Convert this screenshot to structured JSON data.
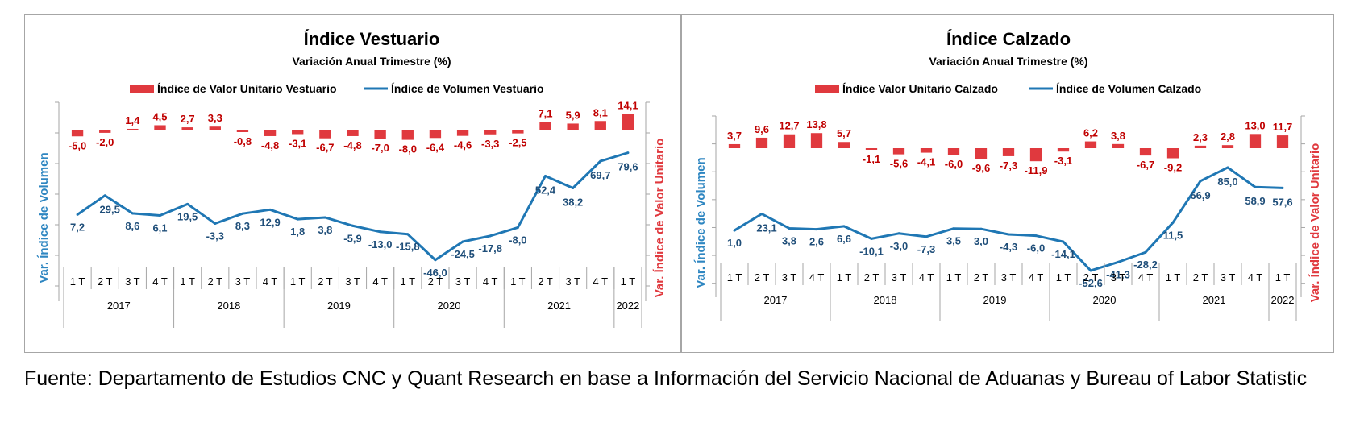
{
  "colors": {
    "bar": "#e0393e",
    "line": "#1f77b4",
    "label_red": "#c00000",
    "label_blue": "#1f4e79",
    "axis_blue": "#2e86c1",
    "axis_red": "#e0393e",
    "grid": "#a6a6a6"
  },
  "source_text": "Fuente: Departamento de Estudios CNC y Quant Research en base a Información del Servicio Nacional de Aduanas y Bureau of Labor Statistic",
  "chart_data": [
    {
      "type": "bar+line",
      "title": "Índice Vestuario",
      "subtitle": "Variación Anual Trimestre  (%)",
      "legend": {
        "bar": "Índice de Valor Unitario Vestuario",
        "line": "Índice de Volumen Vestuario",
        "position": "top-center"
      },
      "ylabel_left": "Var. Índice de Volumen",
      "ylabel_right": "Var. Índice de Valor Unitario",
      "quarters": [
        "1 T",
        "2 T",
        "3 T",
        "4 T",
        "1 T",
        "2 T",
        "3 T",
        "4 T",
        "1 T",
        "2 T",
        "3 T",
        "4 T",
        "1 T",
        "2 T",
        "3 T",
        "4 T",
        "1 T",
        "2 T",
        "3 T",
        "4 T",
        "1 T"
      ],
      "years": [
        {
          "label": "2017",
          "count": 4
        },
        {
          "label": "2018",
          "count": 4
        },
        {
          "label": "2019",
          "count": 4
        },
        {
          "label": "2020",
          "count": 4
        },
        {
          "label": "2021",
          "count": 4
        },
        {
          "label": "2022",
          "count": 1
        }
      ],
      "bars": [
        -5.0,
        -2.0,
        1.4,
        4.5,
        2.7,
        3.3,
        -0.8,
        -4.8,
        -3.1,
        -6.7,
        -4.8,
        -7.0,
        -8.0,
        -6.4,
        -4.6,
        -3.3,
        -2.5,
        7.1,
        5.9,
        8.1,
        14.1
      ],
      "bar_labels": [
        "-5,0",
        "-2,0",
        "1,4",
        "4,5",
        "2,7",
        "3,3",
        "-0,8",
        "-4,8",
        "-3,1",
        "-6,7",
        "-4,8",
        "-7,0",
        "-8,0",
        "-6,4",
        "-4,6",
        "-3,3",
        "-2,5",
        "7,1",
        "5,9",
        "8,1",
        "14,1"
      ],
      "line": [
        7.2,
        29.5,
        8.6,
        6.1,
        19.5,
        -3.3,
        8.3,
        12.9,
        1.8,
        3.8,
        -5.9,
        -13.0,
        -15.8,
        -46.0,
        -24.5,
        -17.8,
        -8.0,
        52.4,
        38.2,
        69.7,
        79.6
      ],
      "line_labels": [
        "7,2",
        "29,5",
        "8,6",
        "6,1",
        "19,5",
        "-3,3",
        "8,3",
        "12,9",
        "1,8",
        "3,8",
        "-5,9",
        "-13,0",
        "-15,8",
        "-46,0",
        "-24,5",
        "-17,8",
        "-8,0",
        "52,4",
        "38,2",
        "69,7",
        "79,6"
      ],
      "ylim_left": [
        -100,
        125
      ],
      "ylim_right": [
        -100,
        20
      ]
    },
    {
      "type": "bar+line",
      "title": "Índice Calzado",
      "subtitle": "Variación Anual Trimestre  (%)",
      "legend": {
        "bar": "Índice Valor Unitario Calzado",
        "line": "Índice de Volumen Calzado",
        "position": "top-center"
      },
      "ylabel_left": "Var. Índice de Volumen",
      "ylabel_right": "Var. Índice de Valor Unitario",
      "quarters": [
        "1 T",
        "2 T",
        "3 T",
        "4 T",
        "1 T",
        "2 T",
        "3 T",
        "4 T",
        "1 T",
        "2 T",
        "3 T",
        "4 T",
        "1 T",
        "2 T",
        "3 T",
        "4 T",
        "1 T",
        "2 T",
        "3 T",
        "4 T",
        "1 T"
      ],
      "years": [
        {
          "label": "2017",
          "count": 4
        },
        {
          "label": "2018",
          "count": 4
        },
        {
          "label": "2019",
          "count": 4
        },
        {
          "label": "2020",
          "count": 4
        },
        {
          "label": "2021",
          "count": 4
        },
        {
          "label": "2022",
          "count": 1
        }
      ],
      "bars": [
        3.7,
        9.6,
        12.7,
        13.8,
        5.7,
        -1.1,
        -5.6,
        -4.1,
        -6.0,
        -9.6,
        -7.3,
        -11.9,
        -3.1,
        6.2,
        3.8,
        -6.7,
        -9.2,
        2.3,
        2.8,
        13.0,
        11.7
      ],
      "bar_labels": [
        "3,7",
        "9,6",
        "12,7",
        "13,8",
        "5,7",
        "-1,1",
        "-5,6",
        "-4,1",
        "-6,0",
        "-9,6",
        "-7,3",
        "-11,9",
        "-3,1",
        "6,2",
        "3,8",
        "-6,7",
        "-9,2",
        "2,3",
        "2,8",
        "13,0",
        "11,7"
      ],
      "line": [
        1.0,
        23.1,
        3.8,
        2.6,
        6.6,
        -10.1,
        -3.0,
        -7.3,
        3.5,
        3.0,
        -4.3,
        -6.0,
        -14.1,
        -52.6,
        -41.3,
        -28.2,
        11.5,
        66.9,
        85.0,
        58.9,
        57.6
      ],
      "line_labels": [
        "1,0",
        "23,1",
        "3,8",
        "2,6",
        "6,6",
        "-10,1",
        "-3,0",
        "-7,3",
        "3,5",
        "3,0",
        "-4,3",
        "-6,0",
        "-14,1",
        "-52,6",
        "-41,3",
        "-28,2",
        "11,5",
        "66,9",
        "85,0",
        "58,9",
        "57,6"
      ],
      "ylim_left": [
        -100,
        125
      ],
      "ylim_right": [
        -60,
        20
      ]
    }
  ]
}
